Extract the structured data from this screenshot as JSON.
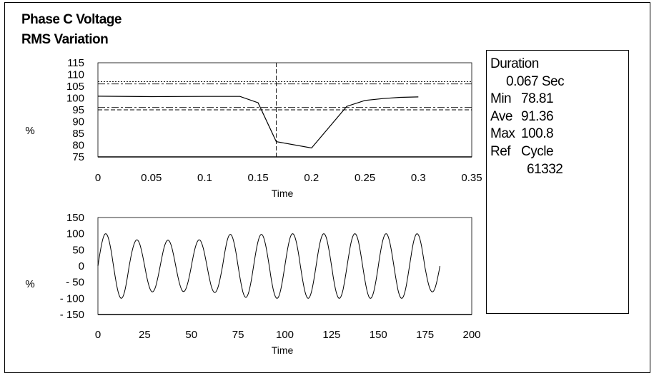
{
  "title_line1": "Phase C Voltage",
  "title_line2": "RMS Variation",
  "stats": {
    "duration_label": "Duration",
    "duration_value": "0.067 Sec",
    "min_label": "Min",
    "min_value": "78.81",
    "ave_label": "Ave",
    "ave_value": "91.36",
    "max_label": "Max",
    "max_value": "100.8",
    "ref_label": "Ref",
    "ref_value_label": "Cycle",
    "ref_value": "61332"
  },
  "chart_data": [
    {
      "type": "line",
      "xlabel": "Time",
      "ylabel": "%",
      "xlim": [
        0,
        0.35
      ],
      "ylim": [
        75,
        115
      ],
      "xticks": [
        "0",
        "0.05",
        "0.1",
        "0.15",
        "0.2",
        "0.25",
        "0.3",
        "0.35"
      ],
      "xtick_values": [
        0,
        0.05,
        0.1,
        0.15,
        0.2,
        0.25,
        0.3,
        0.35
      ],
      "yticks": [
        "75",
        "80",
        "85",
        "90",
        "95",
        "100",
        "105",
        "110",
        "115"
      ],
      "ytick_values": [
        75,
        80,
        85,
        90,
        95,
        100,
        105,
        110,
        115
      ],
      "reference_lines": [
        107,
        106,
        96,
        95
      ],
      "marker_x": 0.167,
      "series": [
        {
          "x": [
            0,
            0.05,
            0.1,
            0.133,
            0.15,
            0.167,
            0.2,
            0.233,
            0.25,
            0.267,
            0.283,
            0.3
          ],
          "y": [
            100.8,
            100.6,
            100.7,
            100.7,
            98,
            81.5,
            78.8,
            96.5,
            99,
            99.8,
            100.3,
            100.5
          ]
        }
      ]
    },
    {
      "type": "line",
      "xlabel": "Time",
      "ylabel": "%",
      "xlim": [
        0,
        200
      ],
      "ylim": [
        -150,
        150
      ],
      "xticks": [
        "0",
        "25",
        "50",
        "75",
        "100",
        "125",
        "150",
        "175",
        "200"
      ],
      "xtick_values": [
        0,
        25,
        50,
        75,
        100,
        125,
        150,
        175,
        200
      ],
      "yticks": [
        "150",
        "100",
        "50",
        "0",
        "- 50",
        "- 100",
        "- 150"
      ],
      "ytick_values": [
        150,
        100,
        50,
        0,
        -50,
        -100,
        -150
      ],
      "series": [
        {
          "cycles": [
            {
              "start": 0,
              "end": 16.7,
              "peak": 100,
              "trough": -100
            },
            {
              "start": 16.7,
              "end": 33.3,
              "peak": 81,
              "trough": -80
            },
            {
              "start": 33.3,
              "end": 50,
              "peak": 80,
              "trough": -79
            },
            {
              "start": 50,
              "end": 66.7,
              "peak": 81,
              "trough": -82
            },
            {
              "start": 66.7,
              "end": 83.3,
              "peak": 98,
              "trough": -97
            },
            {
              "start": 83.3,
              "end": 100,
              "peak": 98,
              "trough": -100
            },
            {
              "start": 100,
              "end": 116.7,
              "peak": 100,
              "trough": -100
            },
            {
              "start": 116.7,
              "end": 133.3,
              "peak": 100,
              "trough": -100
            },
            {
              "start": 133.3,
              "end": 150,
              "peak": 100,
              "trough": -100
            },
            {
              "start": 150,
              "end": 166.7,
              "peak": 100,
              "trough": -100
            },
            {
              "start": 166.7,
              "end": 183,
              "peak": 100,
              "trough": -80
            }
          ]
        }
      ]
    }
  ]
}
